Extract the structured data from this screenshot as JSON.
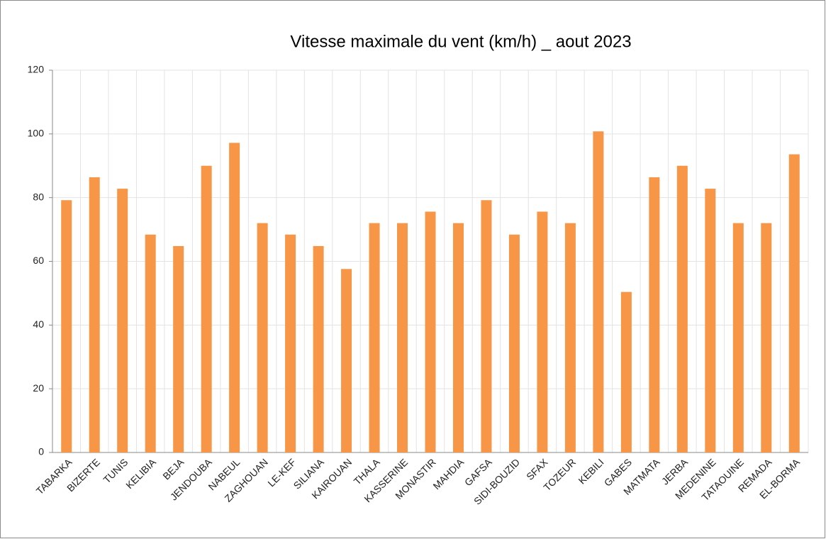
{
  "chart_data": {
    "type": "bar",
    "title": "Vitesse maximale du vent (km/h) _ aout 2023",
    "categories": [
      "TABARKA",
      "BIZERTE",
      "TUNIS",
      "KELIBIA",
      "BEJA",
      "JENDOUBA",
      "NABEUL",
      "ZAGHOUAN",
      "LE-KEF",
      "SILIANA",
      "KAIROUAN",
      "THALA",
      "KASSERINE",
      "MONASTIR",
      "MAHDIA",
      "GAFSA",
      "SIDI-BOUZID",
      "SFAX",
      "TOZEUR",
      "KEBILI",
      "GABES",
      "MATMATA",
      "JERBA",
      "MEDENINE",
      "TATAOUINE",
      "REMADA",
      "EL-BORMA"
    ],
    "values": [
      79.2,
      86.4,
      82.8,
      68.4,
      64.8,
      90,
      97.2,
      72,
      68.4,
      64.8,
      57.6,
      72,
      72,
      75.6,
      72,
      79.2,
      68.4,
      75.6,
      72,
      100.8,
      50.4,
      86.4,
      90,
      82.8,
      72,
      72,
      93.6
    ],
    "color": "#f79646",
    "ylim": [
      0,
      120
    ],
    "yticks": [
      0,
      20,
      40,
      60,
      80,
      100,
      120
    ],
    "grid": true
  }
}
